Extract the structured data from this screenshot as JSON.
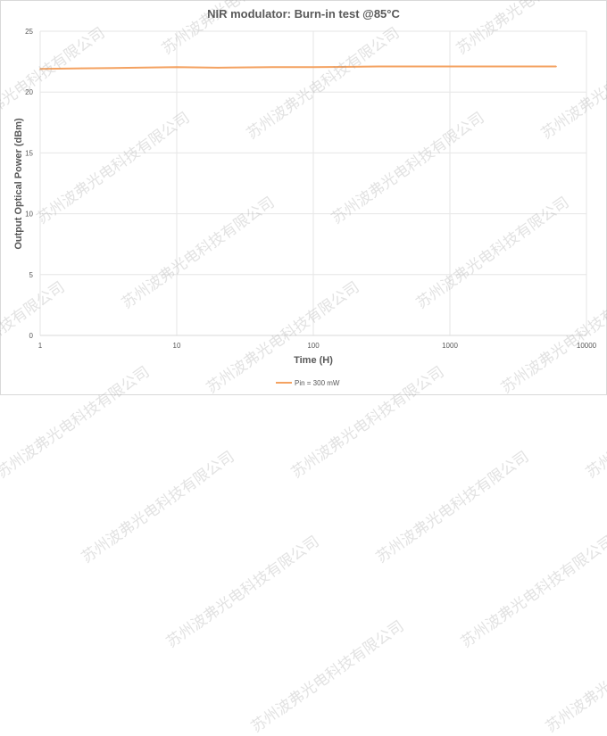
{
  "chart_data": {
    "type": "line",
    "title": "NIR modulator: Burn-in test @85°C",
    "xlabel": "Time (H)",
    "ylabel": "Output Optical Power (dBm)",
    "xscale": "log",
    "xlim": [
      1,
      10000
    ],
    "ylim": [
      0,
      25
    ],
    "xticks": [
      "1",
      "10",
      "100",
      "1000",
      "10000"
    ],
    "yticks": [
      "0",
      "5",
      "10",
      "15",
      "20",
      "25"
    ],
    "grid": true,
    "legend": "bottom",
    "series": [
      {
        "name": "Pin = 300 mW",
        "color": "#f4a261",
        "x": [
          1,
          2,
          5,
          10,
          20,
          50,
          100,
          300,
          1000,
          3000,
          6000
        ],
        "y": [
          21.9,
          21.95,
          22.0,
          22.05,
          22.0,
          22.05,
          22.05,
          22.1,
          22.1,
          22.1,
          22.1
        ]
      }
    ]
  },
  "watermark": "苏州波弗光电科技有限公司"
}
